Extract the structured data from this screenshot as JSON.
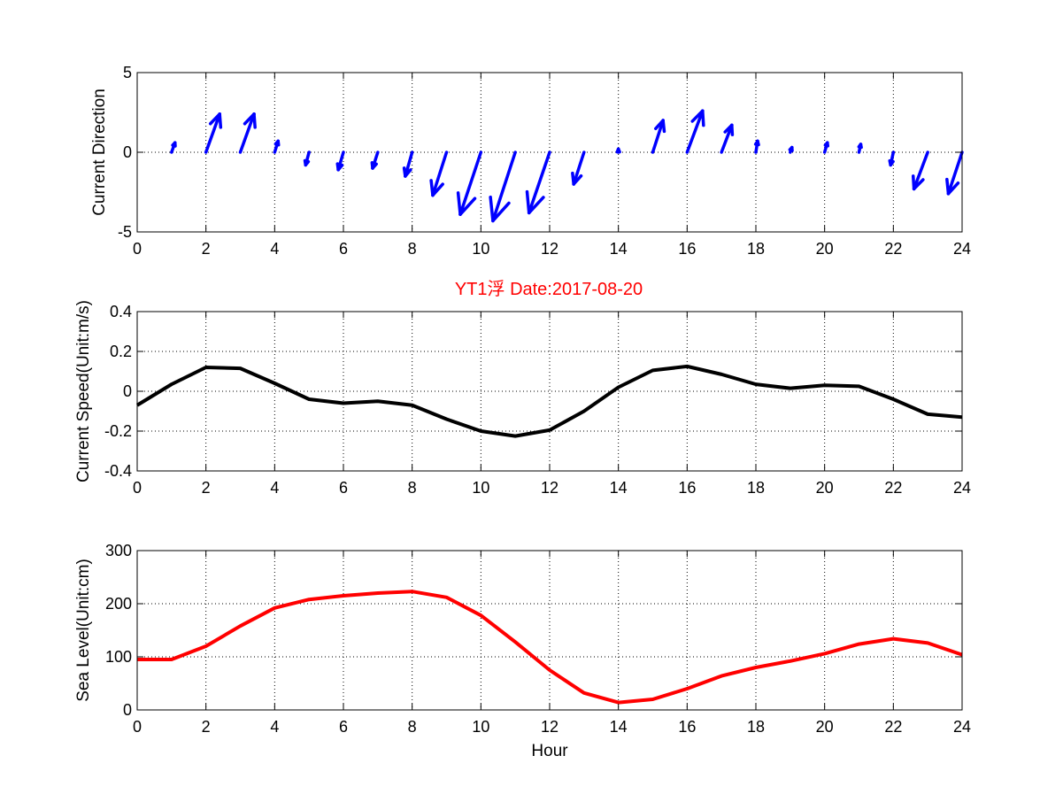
{
  "title": "YT1浮 Date:2017-08-20",
  "chart_data": [
    {
      "type": "quiver",
      "ylabel": "Current Direction",
      "xlabel": "",
      "xlim": [
        0,
        24
      ],
      "ylim": [
        -5,
        5
      ],
      "xticks": [
        0,
        2,
        4,
        6,
        8,
        10,
        12,
        14,
        16,
        18,
        20,
        22,
        24
      ],
      "yticks": [
        -5,
        0,
        5
      ],
      "grid": true,
      "color": "#0000ff",
      "vectors": [
        {
          "x": 1,
          "u": 0.1,
          "v": 0.6
        },
        {
          "x": 2,
          "u": 0.4,
          "v": 2.4
        },
        {
          "x": 3,
          "u": 0.4,
          "v": 2.4
        },
        {
          "x": 4,
          "u": 0.1,
          "v": 0.7
        },
        {
          "x": 5,
          "u": -0.1,
          "v": -0.8
        },
        {
          "x": 6,
          "u": -0.15,
          "v": -1.1
        },
        {
          "x": 7,
          "u": -0.15,
          "v": -1.0
        },
        {
          "x": 8,
          "u": -0.2,
          "v": -1.5
        },
        {
          "x": 9,
          "u": -0.4,
          "v": -2.7
        },
        {
          "x": 10,
          "u": -0.6,
          "v": -3.9
        },
        {
          "x": 11,
          "u": -0.65,
          "v": -4.3
        },
        {
          "x": 12,
          "u": -0.6,
          "v": -3.8
        },
        {
          "x": 13,
          "u": -0.3,
          "v": -2.0
        },
        {
          "x": 14,
          "u": 0.0,
          "v": 0.2
        },
        {
          "x": 15,
          "u": 0.3,
          "v": 2.0
        },
        {
          "x": 16,
          "u": 0.45,
          "v": 2.6
        },
        {
          "x": 17,
          "u": 0.3,
          "v": 1.7
        },
        {
          "x": 18,
          "u": 0.05,
          "v": 0.7
        },
        {
          "x": 19,
          "u": 0.05,
          "v": 0.3
        },
        {
          "x": 20,
          "u": 0.08,
          "v": 0.6
        },
        {
          "x": 21,
          "u": 0.05,
          "v": 0.5
        },
        {
          "x": 22,
          "u": -0.08,
          "v": -0.8
        },
        {
          "x": 23,
          "u": -0.4,
          "v": -2.3
        },
        {
          "x": 24,
          "u": -0.4,
          "v": -2.6
        }
      ]
    },
    {
      "type": "line",
      "ylabel": "Current Speed(Unit:m/s)",
      "xlabel": "",
      "xlim": [
        0,
        24
      ],
      "ylim": [
        -0.4,
        0.4
      ],
      "xticks": [
        0,
        2,
        4,
        6,
        8,
        10,
        12,
        14,
        16,
        18,
        20,
        22,
        24
      ],
      "yticks": [
        -0.4,
        -0.2,
        0,
        0.2,
        0.4
      ],
      "grid": true,
      "color": "#000000",
      "x": [
        0,
        1,
        2,
        3,
        4,
        5,
        6,
        7,
        8,
        9,
        10,
        11,
        12,
        13,
        14,
        15,
        16,
        17,
        18,
        19,
        20,
        21,
        22,
        23,
        24
      ],
      "y": [
        -0.07,
        0.035,
        0.12,
        0.115,
        0.04,
        -0.04,
        -0.06,
        -0.05,
        -0.07,
        -0.14,
        -0.2,
        -0.225,
        -0.195,
        -0.1,
        0.02,
        0.105,
        0.125,
        0.085,
        0.035,
        0.015,
        0.03,
        0.025,
        -0.04,
        -0.115,
        -0.13
      ]
    },
    {
      "type": "line",
      "ylabel": "Sea Level(Unit:cm)",
      "xlabel": "Hour",
      "xlim": [
        0,
        24
      ],
      "ylim": [
        0,
        300
      ],
      "xticks": [
        0,
        2,
        4,
        6,
        8,
        10,
        12,
        14,
        16,
        18,
        20,
        22,
        24
      ],
      "yticks": [
        0,
        100,
        200,
        300
      ],
      "grid": true,
      "color": "#ff0000",
      "x": [
        0,
        1,
        2,
        3,
        4,
        5,
        6,
        7,
        8,
        9,
        10,
        11,
        12,
        13,
        14,
        15,
        16,
        17,
        18,
        19,
        20,
        21,
        22,
        23,
        24
      ],
      "y": [
        95,
        95,
        120,
        158,
        192,
        208,
        215,
        220,
        223,
        212,
        178,
        128,
        75,
        32,
        14,
        20,
        40,
        64,
        80,
        92,
        106,
        124,
        134,
        126,
        104
      ]
    }
  ]
}
